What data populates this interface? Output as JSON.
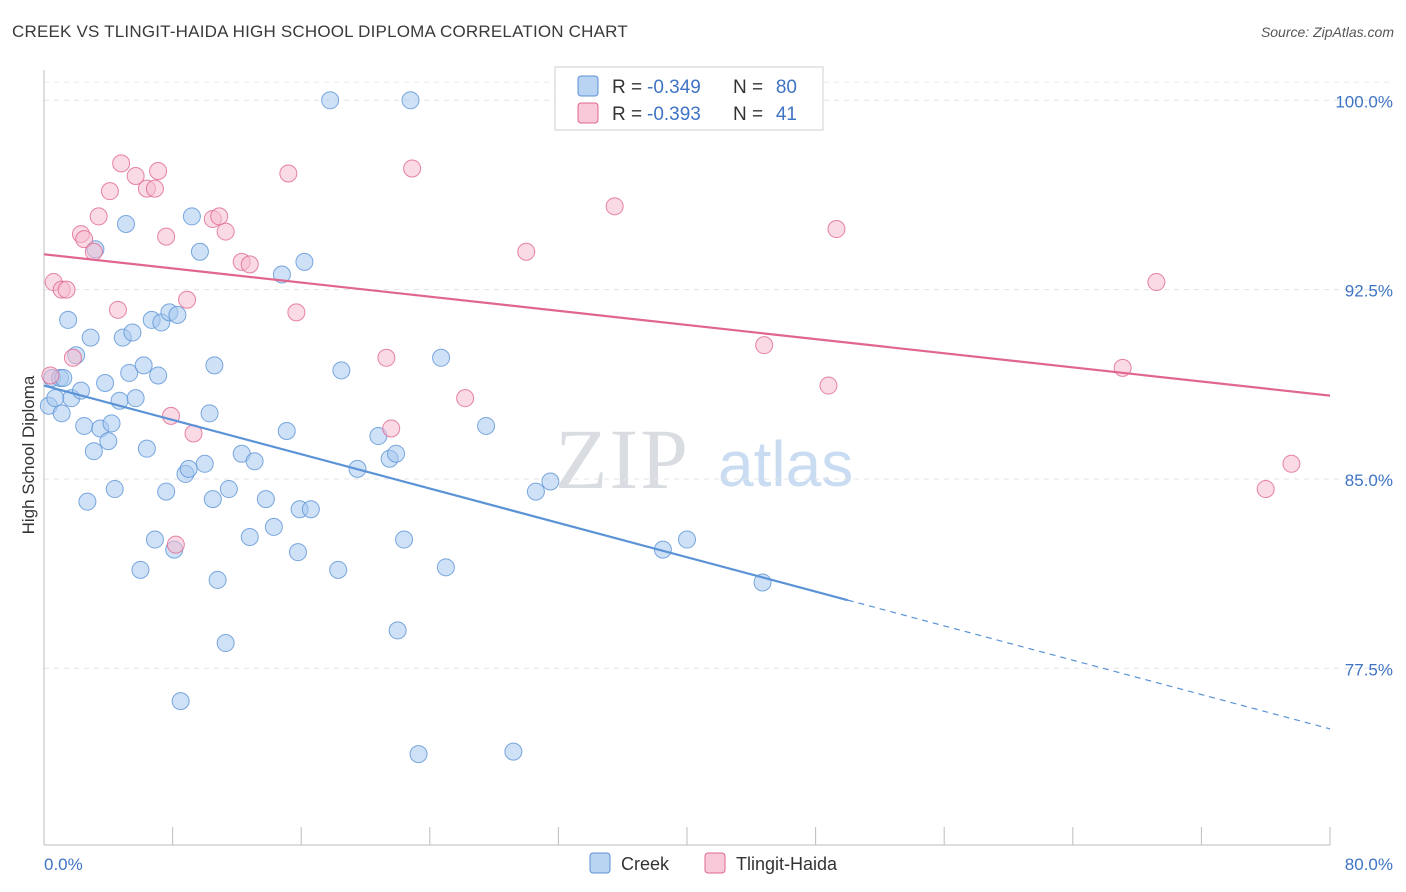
{
  "header": {
    "title": "CREEK VS TLINGIT-HAIDA HIGH SCHOOL DIPLOMA CORRELATION CHART",
    "source": "Source: ZipAtlas.com"
  },
  "watermark": {
    "zip": "ZIP",
    "atlas": "atlas"
  },
  "legend": {
    "rows": [
      {
        "r_label": "R =",
        "r_value": "-0.349",
        "n_label": "N =",
        "n_value": "80",
        "color": "#8fb8e8"
      },
      {
        "r_label": "R =",
        "r_value": "-0.393",
        "n_label": "N =",
        "n_value": "41",
        "color": "#f2a6bf"
      }
    ]
  },
  "bottom_legend": {
    "series1": "Creek",
    "series2": "Tlingit-Haida"
  },
  "chart_data": {
    "type": "scatter",
    "title": "CREEK VS TLINGIT-HAIDA HIGH SCHOOL DIPLOMA CORRELATION CHART",
    "xlabel": "",
    "ylabel": "High School Diploma",
    "xlim": [
      0,
      80
    ],
    "ylim": [
      70.5,
      101.2
    ],
    "x_tick_labels": [
      "0.0%",
      "80.0%"
    ],
    "y_ticks": [
      77.5,
      85.0,
      92.5,
      100.0
    ],
    "y_tick_labels": [
      "77.5%",
      "85.0%",
      "92.5%",
      "100.0%"
    ],
    "grid": true,
    "series": [
      {
        "name": "Creek",
        "color": "#5b93d6",
        "fill": "#a8c8f0",
        "trend": {
          "x0": 0,
          "y0": 88.7,
          "x1": 50,
          "y1": 80.2,
          "dash_to_x": 80,
          "dash_to_y": 75.1
        },
        "points": [
          [
            0.3,
            87.9
          ],
          [
            0.5,
            89.0
          ],
          [
            0.7,
            88.2
          ],
          [
            1.0,
            89.0
          ],
          [
            1.1,
            87.6
          ],
          [
            1.2,
            89.0
          ],
          [
            1.5,
            91.3
          ],
          [
            1.7,
            88.2
          ],
          [
            2.0,
            89.9
          ],
          [
            2.3,
            88.5
          ],
          [
            2.5,
            87.1
          ],
          [
            2.7,
            84.1
          ],
          [
            2.9,
            90.6
          ],
          [
            3.1,
            86.1
          ],
          [
            3.2,
            94.1
          ],
          [
            3.5,
            87.0
          ],
          [
            3.8,
            88.8
          ],
          [
            4.0,
            86.5
          ],
          [
            4.2,
            87.2
          ],
          [
            4.4,
            84.6
          ],
          [
            4.7,
            88.1
          ],
          [
            4.9,
            90.6
          ],
          [
            5.1,
            95.1
          ],
          [
            5.3,
            89.2
          ],
          [
            5.5,
            90.8
          ],
          [
            5.7,
            88.2
          ],
          [
            6.0,
            81.4
          ],
          [
            6.2,
            89.5
          ],
          [
            6.4,
            86.2
          ],
          [
            6.7,
            91.3
          ],
          [
            6.9,
            82.6
          ],
          [
            7.1,
            89.1
          ],
          [
            7.3,
            91.2
          ],
          [
            7.6,
            84.5
          ],
          [
            7.8,
            91.6
          ],
          [
            8.1,
            82.2
          ],
          [
            8.3,
            91.5
          ],
          [
            8.5,
            76.2
          ],
          [
            8.8,
            85.2
          ],
          [
            9.0,
            85.4
          ],
          [
            9.2,
            95.4
          ],
          [
            9.7,
            94.0
          ],
          [
            10.0,
            85.6
          ],
          [
            10.3,
            87.6
          ],
          [
            10.5,
            84.2
          ],
          [
            10.6,
            89.5
          ],
          [
            10.8,
            81.0
          ],
          [
            11.3,
            78.5
          ],
          [
            11.5,
            84.6
          ],
          [
            12.3,
            86.0
          ],
          [
            12.8,
            82.7
          ],
          [
            13.1,
            85.7
          ],
          [
            13.8,
            84.2
          ],
          [
            14.3,
            83.1
          ],
          [
            14.8,
            93.1
          ],
          [
            15.1,
            86.9
          ],
          [
            15.8,
            82.1
          ],
          [
            15.9,
            83.8
          ],
          [
            16.2,
            93.6
          ],
          [
            16.6,
            83.8
          ],
          [
            17.8,
            100.0
          ],
          [
            18.3,
            81.4
          ],
          [
            18.5,
            89.3
          ],
          [
            19.5,
            85.4
          ],
          [
            20.8,
            86.7
          ],
          [
            21.5,
            85.8
          ],
          [
            21.9,
            86.0
          ],
          [
            22.0,
            79.0
          ],
          [
            22.4,
            82.6
          ],
          [
            22.8,
            100.0
          ],
          [
            23.3,
            74.1
          ],
          [
            24.7,
            89.8
          ],
          [
            25.0,
            81.5
          ],
          [
            27.5,
            87.1
          ],
          [
            29.2,
            74.2
          ],
          [
            30.6,
            84.5
          ],
          [
            31.5,
            84.9
          ],
          [
            38.5,
            82.2
          ],
          [
            40.0,
            82.6
          ],
          [
            44.7,
            80.9
          ]
        ]
      },
      {
        "name": "Tlingit-Haida",
        "color": "#e0668f",
        "fill": "#f5bcd0",
        "trend": {
          "x0": 0,
          "y0": 93.9,
          "x1": 80,
          "y1": 88.3
        },
        "points": [
          [
            0.4,
            89.1
          ],
          [
            0.6,
            92.8
          ],
          [
            1.1,
            92.5
          ],
          [
            1.4,
            92.5
          ],
          [
            1.8,
            89.8
          ],
          [
            2.3,
            94.7
          ],
          [
            2.5,
            94.5
          ],
          [
            3.1,
            94.0
          ],
          [
            3.4,
            95.4
          ],
          [
            4.1,
            96.4
          ],
          [
            4.6,
            91.7
          ],
          [
            4.8,
            97.5
          ],
          [
            5.7,
            97.0
          ],
          [
            6.4,
            96.5
          ],
          [
            6.9,
            96.5
          ],
          [
            7.1,
            97.2
          ],
          [
            7.6,
            94.6
          ],
          [
            7.9,
            87.5
          ],
          [
            8.2,
            82.4
          ],
          [
            8.9,
            92.1
          ],
          [
            9.3,
            86.8
          ],
          [
            10.5,
            95.3
          ],
          [
            10.9,
            95.4
          ],
          [
            11.3,
            94.8
          ],
          [
            12.3,
            93.6
          ],
          [
            12.8,
            93.5
          ],
          [
            15.2,
            97.1
          ],
          [
            15.7,
            91.6
          ],
          [
            21.3,
            89.8
          ],
          [
            21.6,
            87.0
          ],
          [
            22.9,
            97.3
          ],
          [
            26.2,
            88.2
          ],
          [
            30.0,
            94.0
          ],
          [
            35.5,
            95.8
          ],
          [
            44.8,
            90.3
          ],
          [
            48.8,
            88.7
          ],
          [
            49.3,
            94.9
          ],
          [
            67.1,
            89.4
          ],
          [
            69.2,
            92.8
          ],
          [
            76.0,
            84.6
          ],
          [
            77.6,
            85.6
          ]
        ]
      }
    ]
  }
}
